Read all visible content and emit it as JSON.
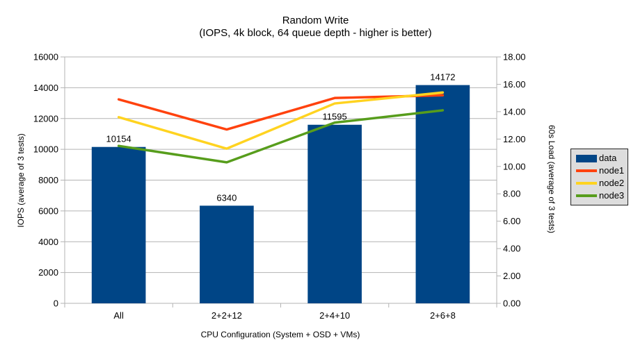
{
  "chart_data": {
    "type": "combo-bar-line",
    "title": "Random Write",
    "subtitle": "(IOPS, 4k block, 64 queue depth - higher is better)",
    "categories": [
      "All",
      "2+2+12",
      "2+4+10",
      "2+6+8"
    ],
    "bar_series": {
      "name": "data",
      "color": "#004586",
      "axis": "left",
      "values": [
        10154,
        6340,
        11595,
        14172
      ],
      "data_labels": [
        "10154",
        "6340",
        "11595",
        "14172"
      ]
    },
    "line_series": [
      {
        "name": "node1",
        "color": "#FF420E",
        "axis": "right",
        "values": [
          14.9,
          12.7,
          15.0,
          15.2
        ]
      },
      {
        "name": "node2",
        "color": "#FFD320",
        "axis": "right",
        "values": [
          13.6,
          11.3,
          14.6,
          15.4
        ]
      },
      {
        "name": "node3",
        "color": "#579D1C",
        "axis": "right",
        "values": [
          11.5,
          10.3,
          13.2,
          14.1
        ]
      }
    ],
    "left_axis": {
      "title": "IOPS (average of 3 tests)",
      "min": 0,
      "max": 16000,
      "step": 2000,
      "decimals": 0
    },
    "right_axis": {
      "title": "60s Load (average of 3 tests)",
      "min": 0,
      "max": 18,
      "step": 2,
      "decimals": 2
    },
    "x_axis": {
      "title": "CPU Configuration (System + OSD + VMs)"
    },
    "legend": {
      "position": "right",
      "entries": [
        "data",
        "node1",
        "node2",
        "node3"
      ]
    },
    "grid": {
      "horizontal": true,
      "vertical": false
    }
  },
  "colors": {
    "axis_and_grid": "#B3B3B3",
    "text": "#000000",
    "legend_background": "#DDDDDD",
    "legend_border": "#222222"
  }
}
